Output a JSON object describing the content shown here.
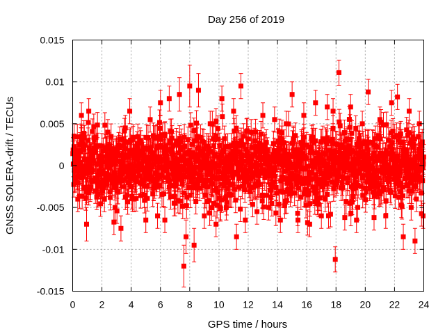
{
  "chart_data": {
    "type": "scatter",
    "title": "Day 256 of 2019",
    "xlabel": "GPS time / hours",
    "ylabel": "GNSS SOLERA-drift / TECUs",
    "xlim": [
      0,
      24
    ],
    "ylim": [
      -0.015,
      0.015
    ],
    "xticks": [
      0,
      2,
      4,
      6,
      8,
      10,
      12,
      14,
      16,
      18,
      20,
      22,
      24
    ],
    "yticks": [
      -0.015,
      -0.01,
      -0.005,
      0,
      0.005,
      0.01,
      0.015
    ],
    "ytick_labels": [
      "-0.015",
      "-0.01",
      "-0.005",
      "0",
      "0.005",
      "0.01",
      "0.015"
    ],
    "grid": true,
    "legend": "none",
    "marker": "square",
    "error_bars": true,
    "color": "#ff0000",
    "series": [
      {
        "x": [
          0.1,
          0.35,
          0.6,
          0.95,
          1.1,
          1.5,
          2.0,
          2.4,
          2.9,
          3.3,
          3.6,
          3.9,
          4.2,
          4.6,
          5.0,
          5.3,
          5.8,
          6.0,
          6.3,
          6.6,
          7.0,
          7.3,
          7.6,
          7.75,
          8.0,
          8.3,
          8.6,
          9.0,
          9.4,
          9.8,
          10.2,
          10.5,
          11.0,
          11.2,
          11.5,
          11.8,
          12.2,
          12.6,
          13.0,
          13.4,
          13.8,
          14.2,
          14.6,
          15.0,
          15.4,
          15.8,
          16.2,
          16.6,
          17.0,
          17.4,
          17.8,
          17.95,
          18.2,
          18.6,
          19.0,
          19.4,
          19.8,
          20.2,
          20.6,
          21.0,
          21.4,
          21.8,
          22.2,
          22.6,
          23.0,
          23.4,
          23.7,
          23.95
        ],
        "y": [
          0.0035,
          -0.004,
          0.006,
          -0.007,
          0.0065,
          0.002,
          -0.003,
          0.004,
          -0.005,
          -0.0075,
          0.0045,
          0.0065,
          -0.004,
          0.003,
          -0.0065,
          0.0055,
          -0.006,
          0.0075,
          -0.0065,
          0.008,
          -0.0045,
          0.0085,
          -0.012,
          -0.0085,
          0.0095,
          -0.0095,
          0.009,
          -0.006,
          0.005,
          -0.007,
          0.008,
          -0.005,
          0.0065,
          -0.0085,
          0.0095,
          -0.0065,
          0.004,
          -0.0055,
          0.006,
          -0.005,
          0.0055,
          -0.0065,
          0.005,
          0.0085,
          -0.0065,
          0.006,
          -0.007,
          0.0075,
          -0.006,
          0.007,
          0.0065,
          -0.0112,
          0.0111,
          -0.0062,
          0.007,
          -0.0065,
          0.005,
          0.0088,
          -0.0062,
          0.0055,
          -0.006,
          0.0075,
          0.0082,
          -0.0085,
          0.0065,
          -0.009,
          0.005,
          -0.006
        ],
        "errors": [
          0.0015,
          0.0015,
          0.0015,
          0.002,
          0.0015,
          0.0015,
          0.0015,
          0.0015,
          0.0015,
          0.0015,
          0.0015,
          0.0015,
          0.0015,
          0.0015,
          0.0015,
          0.0015,
          0.0015,
          0.0015,
          0.0015,
          0.0015,
          0.0015,
          0.002,
          0.0025,
          0.002,
          0.0025,
          0.002,
          0.002,
          0.0015,
          0.0015,
          0.0015,
          0.0015,
          0.0015,
          0.0015,
          0.0015,
          0.0015,
          0.0015,
          0.0015,
          0.0015,
          0.0015,
          0.0015,
          0.0015,
          0.0015,
          0.0015,
          0.0015,
          0.0015,
          0.0015,
          0.0015,
          0.0015,
          0.0015,
          0.0015,
          0.0015,
          0.0015,
          0.0015,
          0.0015,
          0.0015,
          0.0015,
          0.0015,
          0.0015,
          0.0015,
          0.0015,
          0.0015,
          0.0015,
          0.0015,
          0.0015,
          0.0015,
          0.0015,
          0.0015,
          0.0015
        ],
        "bulk": {
          "count": 1400,
          "y_spread_sd": 0.0022,
          "error": 0.0015
        }
      }
    ]
  }
}
